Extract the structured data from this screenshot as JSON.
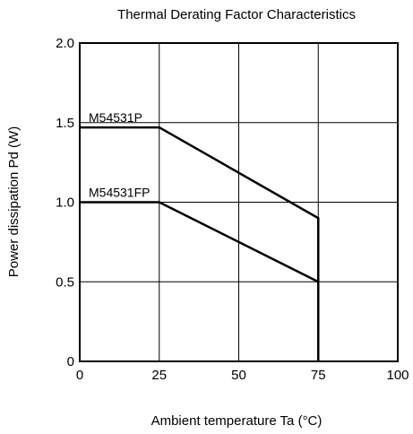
{
  "chart_data": {
    "type": "line",
    "title": "Thermal Derating Factor Characteristics",
    "xlabel": "Ambient temperature  Ta (°C)",
    "ylabel": "Power dissipation  Pd (W)",
    "xlim": [
      0,
      100
    ],
    "ylim": [
      0,
      2.0
    ],
    "x_ticks": [
      "0",
      "25",
      "50",
      "75",
      "100"
    ],
    "y_ticks": [
      "0",
      "0.5",
      "1.0",
      "1.5",
      "2.0"
    ],
    "grid": true,
    "series": [
      {
        "name": "M54531P",
        "points": [
          [
            0,
            1.47
          ],
          [
            25,
            1.47
          ],
          [
            75,
            0.9
          ],
          [
            75,
            0
          ]
        ]
      },
      {
        "name": "M54531FP",
        "points": [
          [
            0,
            1.0
          ],
          [
            25,
            1.0
          ],
          [
            75,
            0.5
          ],
          [
            75,
            0
          ]
        ]
      }
    ]
  },
  "colors": {
    "line": "#000000",
    "grid": "#000000",
    "background": "#ffffff"
  }
}
